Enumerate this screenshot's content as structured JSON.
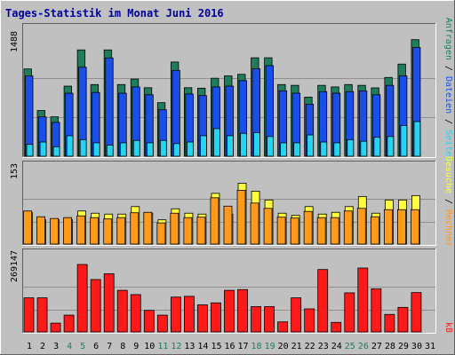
{
  "title": "Tages-Statistik im Monat Juni 2016",
  "colors": {
    "background": "#c0c0c0",
    "title": "#0000a0",
    "anfragen": "#1e7d5a",
    "dateien": "#1a4ee8",
    "seiten": "#24d4f0",
    "besuche": "#ffff40",
    "rechner": "#ff9a1a",
    "kb": "#ff1a1a",
    "weekend_day": "#1e7d5a",
    "weekday": "#000000",
    "panel_bg": "#c0c0c0"
  },
  "right_labels": {
    "top": [
      {
        "text": "Anfragen",
        "color_key": "anfragen"
      },
      {
        "text": " / ",
        "color_key": "weekday"
      },
      {
        "text": "Dateien",
        "color_key": "dateien"
      },
      {
        "text": " / ",
        "color_key": "weekday"
      },
      {
        "text": "Seiten",
        "color_key": "seiten"
      }
    ],
    "middle": [
      {
        "text": "Besuche",
        "color_key": "besuche"
      },
      {
        "text": " / ",
        "color_key": "weekday"
      },
      {
        "text": "Rechner",
        "color_key": "rechner"
      }
    ],
    "bottom": [
      {
        "text": "kB",
        "color_key": "kb"
      }
    ]
  },
  "chart_data": [
    {
      "type": "bar",
      "panel": "top",
      "ymax_label": "1488",
      "ylim": [
        0,
        1488
      ],
      "categories": [
        "1",
        "2",
        "3",
        "4",
        "5",
        "6",
        "7",
        "8",
        "9",
        "10",
        "11",
        "12",
        "13",
        "14",
        "15",
        "16",
        "17",
        "18",
        "19",
        "20",
        "21",
        "22",
        "23",
        "24",
        "25",
        "26",
        "27",
        "28",
        "29",
        "30",
        "31"
      ],
      "weekend": [
        "4",
        "5",
        "11",
        "12",
        "18",
        "19",
        "25",
        "26"
      ],
      "series": [
        {
          "name": "Anfragen",
          "color_key": "anfragen",
          "values": [
            1108,
            580,
            500,
            890,
            1350,
            910,
            1350,
            910,
            980,
            870,
            680,
            1196,
            870,
            864,
            990,
            1020,
            1040,
            1250,
            1250,
            910,
            900,
            750,
            900,
            880,
            910,
            900,
            868,
            1000,
            1170,
            1480,
            0
          ]
        },
        {
          "name": "Dateien",
          "color_key": "dateien",
          "values": [
            1020,
            500,
            430,
            800,
            1130,
            810,
            1248,
            800,
            880,
            780,
            590,
            1090,
            790,
            770,
            880,
            890,
            960,
            1110,
            1150,
            830,
            800,
            660,
            820,
            800,
            820,
            830,
            780,
            900,
            1020,
            1380,
            0
          ]
        },
        {
          "name": "Seiten",
          "color_key": "seiten",
          "values": [
            150,
            180,
            120,
            260,
            210,
            170,
            140,
            170,
            200,
            170,
            200,
            160,
            180,
            260,
            350,
            260,
            290,
            300,
            250,
            170,
            170,
            270,
            180,
            170,
            210,
            190,
            240,
            250,
            390,
            440,
            0
          ]
        }
      ]
    },
    {
      "type": "bar",
      "panel": "middle",
      "ymax_label": "153",
      "ylim": [
        0,
        153
      ],
      "categories": [
        "1",
        "2",
        "3",
        "4",
        "5",
        "6",
        "7",
        "8",
        "9",
        "10",
        "11",
        "12",
        "13",
        "14",
        "15",
        "16",
        "17",
        "18",
        "19",
        "20",
        "21",
        "22",
        "23",
        "24",
        "25",
        "26",
        "27",
        "28",
        "29",
        "30",
        "31"
      ],
      "series": [
        {
          "name": "Besuche",
          "color_key": "besuche",
          "values": [
            72,
            55,
            55,
            55,
            75,
            70,
            68,
            68,
            85,
            70,
            55,
            80,
            70,
            68,
            115,
            68,
            138,
            120,
            100,
            70,
            65,
            85,
            68,
            72,
            85,
            108,
            70,
            100,
            100,
            110,
            0
          ]
        },
        {
          "name": "Rechner",
          "color_key": "rechner",
          "values": [
            75,
            62,
            58,
            60,
            64,
            60,
            57,
            60,
            71,
            72,
            48,
            70,
            60,
            61,
            105,
            86,
            122,
            93,
            81,
            61,
            59,
            74,
            60,
            60,
            75,
            81,
            62,
            78,
            78,
            78,
            0
          ]
        }
      ]
    },
    {
      "type": "bar",
      "panel": "bottom",
      "ymax_label": "269147",
      "ylim": [
        0,
        269147
      ],
      "categories": [
        "1",
        "2",
        "3",
        "4",
        "5",
        "6",
        "7",
        "8",
        "9",
        "10",
        "11",
        "12",
        "13",
        "14",
        "15",
        "16",
        "17",
        "18",
        "19",
        "20",
        "21",
        "22",
        "23",
        "24",
        "25",
        "26",
        "27",
        "28",
        "29",
        "30",
        "31"
      ],
      "series": [
        {
          "name": "kB",
          "color_key": "kb",
          "values": [
            136000,
            136000,
            35000,
            67000,
            269147,
            209000,
            232000,
            166000,
            149000,
            86000,
            67000,
            139000,
            142000,
            108000,
            116000,
            166000,
            169000,
            101000,
            101000,
            40000,
            136000,
            92000,
            249000,
            38000,
            156000,
            255000,
            172000,
            70000,
            98000,
            157000,
            0
          ]
        }
      ]
    }
  ]
}
